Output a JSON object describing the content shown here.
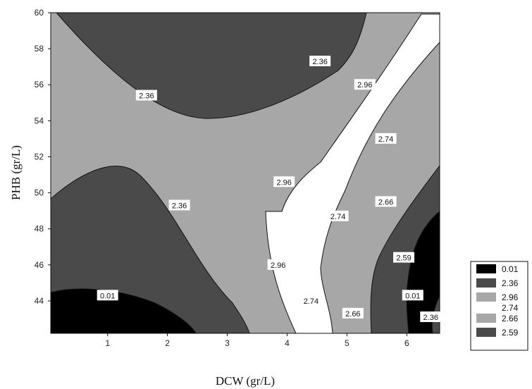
{
  "chart_data": {
    "type": "contour",
    "xlabel": "DCW (gr/L)",
    "ylabel": "PHB (gr/L)",
    "xticks": [
      1,
      2,
      3,
      4,
      5,
      6
    ],
    "yticks": [
      44,
      46,
      48,
      50,
      52,
      54,
      56,
      58,
      60
    ],
    "xlim": [
      0.05,
      6.55
    ],
    "ylim": [
      42.2,
      60
    ],
    "grid": false,
    "legend_position": "right",
    "legend": [
      {
        "label": "0.01",
        "color": "#000000"
      },
      {
        "label": "2.36",
        "color": "#4a4a4a"
      },
      {
        "label": "2.96",
        "color": "#a7a7a7"
      },
      {
        "label": "2.74",
        "color": "#ffffff"
      },
      {
        "label": "2.66",
        "color": "#a7a7a7"
      },
      {
        "label": "2.59",
        "color": "#4a4a4a"
      }
    ],
    "contour_labels": [
      {
        "text": "2.36",
        "x": 4.55,
        "y": 57.3
      },
      {
        "text": "2.36",
        "x": 1.65,
        "y": 55.4
      },
      {
        "text": "2.96",
        "x": 5.3,
        "y": 56.0
      },
      {
        "text": "2.74",
        "x": 5.65,
        "y": 53.0
      },
      {
        "text": "2.96",
        "x": 3.95,
        "y": 50.6
      },
      {
        "text": "2.36",
        "x": 2.2,
        "y": 49.3
      },
      {
        "text": "2.66",
        "x": 5.65,
        "y": 49.5
      },
      {
        "text": "2.74",
        "x": 4.85,
        "y": 48.7
      },
      {
        "text": "2.96",
        "x": 3.85,
        "y": 46.0
      },
      {
        "text": "2.59",
        "x": 5.95,
        "y": 46.4
      },
      {
        "text": "0.01",
        "x": 1.0,
        "y": 44.3
      },
      {
        "text": "0.01",
        "x": 6.1,
        "y": 44.3
      },
      {
        "text": "2.74",
        "x": 4.4,
        "y": 44.0
      },
      {
        "text": "2.66",
        "x": 5.1,
        "y": 43.3
      },
      {
        "text": "2.36",
        "x": 6.4,
        "y": 43.1
      }
    ]
  }
}
